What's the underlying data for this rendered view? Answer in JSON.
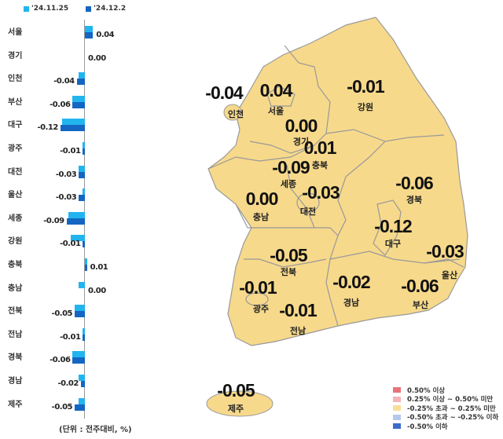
{
  "chart_data": {
    "type": "bar",
    "orientation": "horizontal",
    "series": [
      {
        "name": "'24.11.25",
        "color": "#22b4ee"
      },
      {
        "name": "'24.12.2",
        "color": "#1466c2"
      }
    ],
    "categories": [
      "서울",
      "경기",
      "인천",
      "부산",
      "대구",
      "광주",
      "대전",
      "울산",
      "세종",
      "강원",
      "충북",
      "충남",
      "전북",
      "전남",
      "경북",
      "경남",
      "제주"
    ],
    "values_prev": [
      0.04,
      0.0,
      -0.03,
      -0.06,
      -0.11,
      -0.01,
      -0.03,
      -0.01,
      -0.08,
      -0.07,
      0.01,
      -0.03,
      -0.05,
      -0.01,
      -0.06,
      -0.03,
      -0.03
    ],
    "values_curr": [
      0.04,
      0.0,
      -0.04,
      -0.06,
      -0.12,
      -0.01,
      -0.03,
      -0.03,
      -0.09,
      -0.01,
      0.01,
      0.0,
      -0.05,
      -0.01,
      -0.06,
      -0.02,
      -0.05
    ],
    "labels": [
      "0.04",
      "0.00",
      "-0.04",
      "-0.06",
      "-0.12",
      "-0.01",
      "-0.03",
      "-0.03",
      "-0.09",
      "-0.01",
      "0.01",
      "0.00",
      "-0.05",
      "-0.01",
      "-0.06",
      "-0.02",
      "-0.05"
    ],
    "unit_note": "(단위 : 전주대비, %)"
  },
  "map": {
    "regions": [
      {
        "name": "인천",
        "value": "-0.04"
      },
      {
        "name": "서울",
        "value": "0.04"
      },
      {
        "name": "강원",
        "value": "-0.01"
      },
      {
        "name": "경기",
        "value": "0.00"
      },
      {
        "name": "충북",
        "value": "0.01"
      },
      {
        "name": "세종",
        "value": "-0.09"
      },
      {
        "name": "대전",
        "value": "-0.03"
      },
      {
        "name": "경북",
        "value": "-0.06"
      },
      {
        "name": "충남",
        "value": "0.00"
      },
      {
        "name": "대구",
        "value": "-0.12"
      },
      {
        "name": "전북",
        "value": "-0.05"
      },
      {
        "name": "울산",
        "value": "-0.03"
      },
      {
        "name": "광주",
        "value": "-0.01"
      },
      {
        "name": "경남",
        "value": "-0.02"
      },
      {
        "name": "부산",
        "value": "-0.06"
      },
      {
        "name": "전남",
        "value": "-0.01"
      },
      {
        "name": "제주",
        "value": "-0.05"
      }
    ],
    "fill": "#f7d98b",
    "legend": [
      {
        "label": "0.50% 이상",
        "color": "#e8737a"
      },
      {
        "label": "0.25% 이상 ~ 0.50% 미만",
        "color": "#f4b4b8"
      },
      {
        "label": "-0.25% 초과 ~ 0.25% 미만",
        "color": "#f8df94"
      },
      {
        "label": "-0.50% 초과 ~ -0.25% 이하",
        "color": "#b4c8ef"
      },
      {
        "label": "-0.50% 이하",
        "color": "#3a6ccc"
      }
    ]
  }
}
